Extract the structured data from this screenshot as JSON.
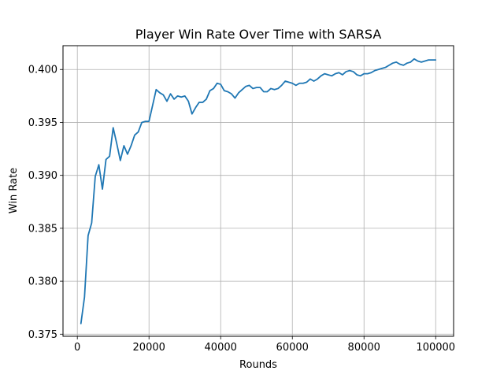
{
  "chart_data": {
    "type": "line",
    "title": "Player Win Rate Over Time with SARSA",
    "xlabel": "Rounds",
    "ylabel": "Win Rate",
    "xlim": [
      -4000,
      105000
    ],
    "ylim": [
      0.3748,
      0.40225
    ],
    "xticks": [
      0,
      20000,
      40000,
      60000,
      80000,
      100000
    ],
    "xtick_labels": [
      "0",
      "20000",
      "40000",
      "60000",
      "80000",
      "100000"
    ],
    "yticks": [
      0.375,
      0.38,
      0.385,
      0.39,
      0.395,
      0.4
    ],
    "ytick_labels": [
      "0.375",
      "0.380",
      "0.385",
      "0.390",
      "0.395",
      "0.400"
    ],
    "grid": true,
    "series": [
      {
        "color": "#1f77b4",
        "x": [
          1000,
          2000,
          3000,
          4000,
          5000,
          6000,
          7000,
          8000,
          9000,
          10000,
          11000,
          12000,
          13000,
          14000,
          15000,
          16000,
          17000,
          18000,
          19000,
          20000,
          21000,
          22000,
          23000,
          24000,
          25000,
          26000,
          27000,
          28000,
          29000,
          30000,
          31000,
          32000,
          33000,
          34000,
          35000,
          36000,
          37000,
          38000,
          39000,
          40000,
          41000,
          42000,
          43000,
          44000,
          45000,
          46000,
          47000,
          48000,
          49000,
          50000,
          51000,
          52000,
          53000,
          54000,
          55000,
          56000,
          57000,
          58000,
          59000,
          60000,
          61000,
          62000,
          63000,
          64000,
          65000,
          66000,
          67000,
          68000,
          69000,
          70000,
          71000,
          72000,
          73000,
          74000,
          75000,
          76000,
          77000,
          78000,
          79000,
          80000,
          81000,
          82000,
          83000,
          84000,
          85000,
          86000,
          87000,
          88000,
          89000,
          90000,
          91000,
          92000,
          93000,
          94000,
          95000,
          96000,
          97000,
          98000,
          99000,
          100000
        ],
        "y": [
          0.376,
          0.3785,
          0.3843,
          0.3855,
          0.3899,
          0.391,
          0.3887,
          0.3915,
          0.3918,
          0.3945,
          0.393,
          0.3914,
          0.3928,
          0.392,
          0.3928,
          0.3938,
          0.3941,
          0.395,
          0.3951,
          0.3951,
          0.3966,
          0.3981,
          0.3978,
          0.3976,
          0.397,
          0.3977,
          0.3972,
          0.3975,
          0.3974,
          0.3975,
          0.397,
          0.3958,
          0.3964,
          0.3969,
          0.3969,
          0.3972,
          0.398,
          0.3982,
          0.3987,
          0.3986,
          0.398,
          0.3979,
          0.3977,
          0.3973,
          0.3978,
          0.3981,
          0.3984,
          0.3985,
          0.3982,
          0.3983,
          0.3983,
          0.3979,
          0.3979,
          0.3982,
          0.3981,
          0.3982,
          0.3985,
          0.3989,
          0.3988,
          0.3987,
          0.3985,
          0.3987,
          0.3987,
          0.3988,
          0.3991,
          0.3989,
          0.3991,
          0.3994,
          0.3996,
          0.3995,
          0.3994,
          0.3996,
          0.3997,
          0.3995,
          0.3998,
          0.3999,
          0.3998,
          0.3995,
          0.3994,
          0.3996,
          0.3996,
          0.3997,
          0.3999,
          0.4,
          0.4001,
          0.4002,
          0.4004,
          0.4006,
          0.4007,
          0.4005,
          0.4004,
          0.4006,
          0.4007,
          0.401,
          0.4008,
          0.4007,
          0.4008,
          0.4009,
          0.4009,
          0.4009
        ]
      }
    ]
  }
}
